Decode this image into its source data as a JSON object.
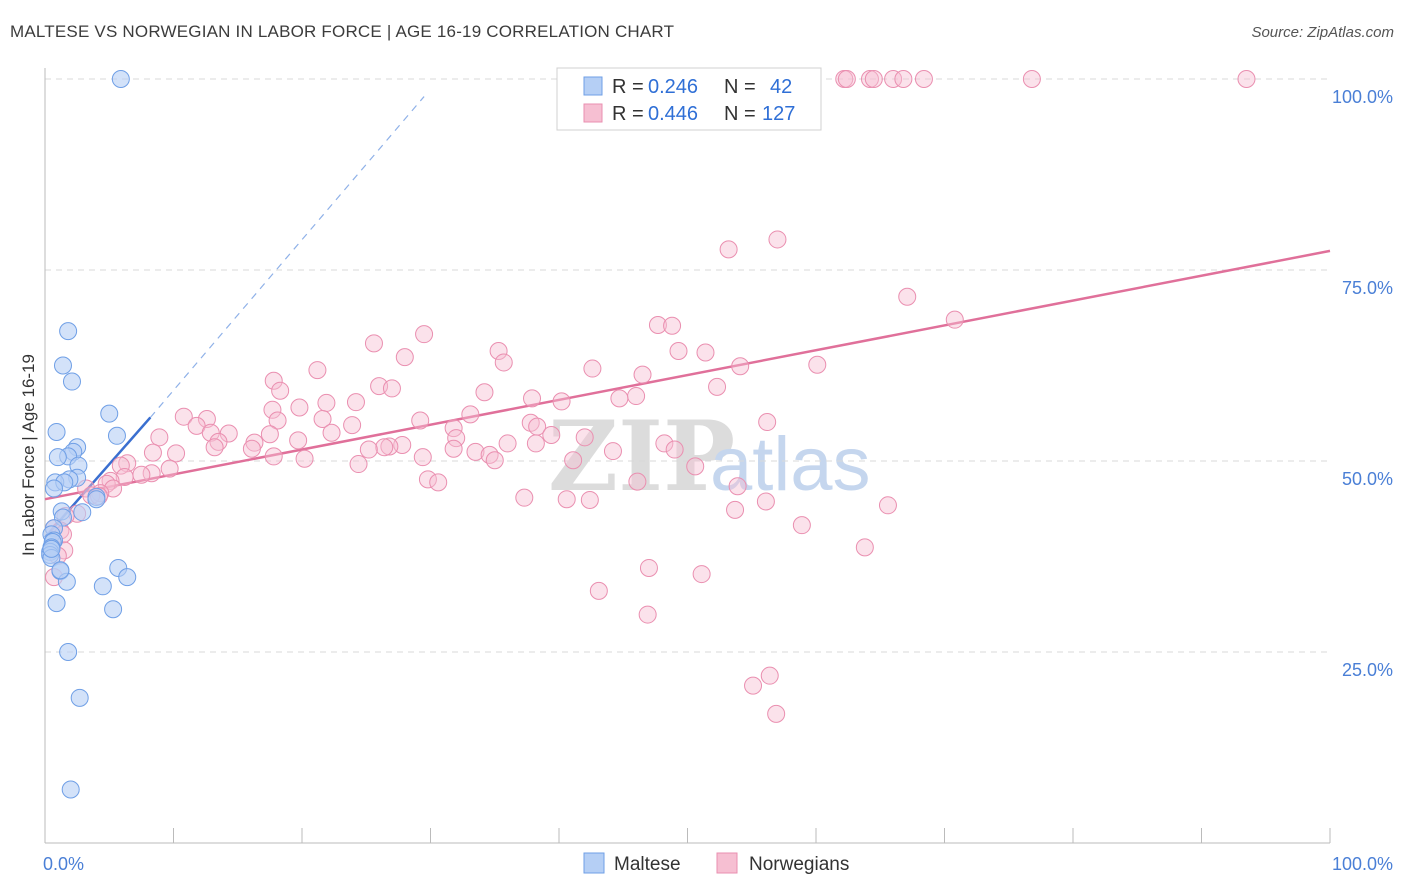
{
  "title": "MALTESE VS NORWEGIAN IN LABOR FORCE | AGE 16-19 CORRELATION CHART",
  "source": "Source: ZipAtlas.com",
  "watermark": {
    "zip": "ZIP",
    "atlas": "atlas"
  },
  "colors": {
    "maltese_fill": "#b5cff5",
    "maltese_stroke": "#6f9fe6",
    "maltese_line": "#3a6fd0",
    "norwegian_fill": "#f6bfd2",
    "norwegian_stroke": "#ea8fb0",
    "norwegian_line": "#e0709a",
    "grid": "#d9d9d9",
    "tick_text": "#4a7fd6"
  },
  "legend": {
    "maltese": {
      "r_label": "R = ",
      "r_value": "0.246",
      "n_label": "N = ",
      "n_value": "42"
    },
    "norwegian": {
      "r_label": "R = ",
      "r_value": "0.446",
      "n_label": "N = ",
      "n_value": "127"
    }
  },
  "bottom_legend": {
    "maltese": "Maltese",
    "norwegians": "Norwegians"
  },
  "chart_data": {
    "type": "scatter",
    "title": "MALTESE VS NORWEGIAN IN LABOR FORCE | AGE 16-19 CORRELATION CHART",
    "xlabel": "",
    "ylabel": "In Labor Force | Age 16-19",
    "xlim": [
      0,
      100
    ],
    "ylim": [
      0,
      100
    ],
    "x_tick_labels": [
      "0.0%",
      "100.0%"
    ],
    "y_ticks": [
      25,
      50,
      75,
      100
    ],
    "y_tick_labels": [
      "25.0%",
      "50.0%",
      "75.0%",
      "100.0%"
    ],
    "series": [
      {
        "name": "Maltese",
        "r": 0.246,
        "n": 42,
        "trend": {
          "x0": 0.0,
          "y0": 40.0,
          "x1": 8.2,
          "y1": 55.7,
          "dash_to_x": 29.5,
          "dash_to_y": 97.7
        },
        "points": [
          [
            5.9,
            100.0
          ],
          [
            1.8,
            67.0
          ],
          [
            2.1,
            60.4
          ],
          [
            1.4,
            62.5
          ],
          [
            5.0,
            56.2
          ],
          [
            5.6,
            53.3
          ],
          [
            0.9,
            53.8
          ],
          [
            2.5,
            51.8
          ],
          [
            2.2,
            51.2
          ],
          [
            1.8,
            50.6
          ],
          [
            1.0,
            50.5
          ],
          [
            2.6,
            49.4
          ],
          [
            2.5,
            47.8
          ],
          [
            1.9,
            47.6
          ],
          [
            0.8,
            47.2
          ],
          [
            1.5,
            47.2
          ],
          [
            0.7,
            46.4
          ],
          [
            4.0,
            45.3
          ],
          [
            4.0,
            45.0
          ],
          [
            2.9,
            43.3
          ],
          [
            1.3,
            43.4
          ],
          [
            1.4,
            42.6
          ],
          [
            0.7,
            41.2
          ],
          [
            0.5,
            40.4
          ],
          [
            0.7,
            39.6
          ],
          [
            0.6,
            39.4
          ],
          [
            0.5,
            38.7
          ],
          [
            0.4,
            38.1
          ],
          [
            0.4,
            37.7
          ],
          [
            0.5,
            37.3
          ],
          [
            1.2,
            35.6
          ],
          [
            5.7,
            36.0
          ],
          [
            6.4,
            34.8
          ],
          [
            1.7,
            34.2
          ],
          [
            4.5,
            33.6
          ],
          [
            0.9,
            31.4
          ],
          [
            5.3,
            30.6
          ],
          [
            1.8,
            25.0
          ],
          [
            2.7,
            19.0
          ],
          [
            2.0,
            7.0
          ],
          [
            1.2,
            35.7
          ],
          [
            0.5,
            38.5
          ]
        ]
      },
      {
        "name": "Norwegians",
        "r": 0.446,
        "n": 127,
        "trend": {
          "x0": 0.0,
          "y0": 45.0,
          "x1": 100.0,
          "y1": 77.5
        },
        "points": [
          [
            62.2,
            100.0
          ],
          [
            62.4,
            100.0
          ],
          [
            64.2,
            100.0
          ],
          [
            64.5,
            100.0
          ],
          [
            66.0,
            100.0
          ],
          [
            66.8,
            100.0
          ],
          [
            68.4,
            100.0
          ],
          [
            76.8,
            100.0
          ],
          [
            93.5,
            100.0
          ],
          [
            57.0,
            79.0
          ],
          [
            53.2,
            77.7
          ],
          [
            67.1,
            71.5
          ],
          [
            70.8,
            68.5
          ],
          [
            47.7,
            67.8
          ],
          [
            48.8,
            67.7
          ],
          [
            29.5,
            66.6
          ],
          [
            25.6,
            65.4
          ],
          [
            49.3,
            64.4
          ],
          [
            51.4,
            64.2
          ],
          [
            35.3,
            64.4
          ],
          [
            28.0,
            63.6
          ],
          [
            35.7,
            62.9
          ],
          [
            54.1,
            62.4
          ],
          [
            60.1,
            62.6
          ],
          [
            42.6,
            62.1
          ],
          [
            21.2,
            61.9
          ],
          [
            46.5,
            61.3
          ],
          [
            17.8,
            60.5
          ],
          [
            26.0,
            59.8
          ],
          [
            27.0,
            59.5
          ],
          [
            52.3,
            59.7
          ],
          [
            34.2,
            59.0
          ],
          [
            18.3,
            59.2
          ],
          [
            46.0,
            58.5
          ],
          [
            37.9,
            58.2
          ],
          [
            44.7,
            58.2
          ],
          [
            40.2,
            57.8
          ],
          [
            21.9,
            57.6
          ],
          [
            24.2,
            57.7
          ],
          [
            19.8,
            57.0
          ],
          [
            17.7,
            56.7
          ],
          [
            33.1,
            56.1
          ],
          [
            10.8,
            55.8
          ],
          [
            12.6,
            55.5
          ],
          [
            21.6,
            55.5
          ],
          [
            18.1,
            55.3
          ],
          [
            29.2,
            55.3
          ],
          [
            56.2,
            55.1
          ],
          [
            37.8,
            55.0
          ],
          [
            23.9,
            54.7
          ],
          [
            11.8,
            54.6
          ],
          [
            38.3,
            54.5
          ],
          [
            31.8,
            54.3
          ],
          [
            12.9,
            53.7
          ],
          [
            22.3,
            53.7
          ],
          [
            14.3,
            53.6
          ],
          [
            17.5,
            53.5
          ],
          [
            39.4,
            53.4
          ],
          [
            42.0,
            53.1
          ],
          [
            8.9,
            53.1
          ],
          [
            32.0,
            53.0
          ],
          [
            19.7,
            52.7
          ],
          [
            13.5,
            52.5
          ],
          [
            16.3,
            52.4
          ],
          [
            38.2,
            52.3
          ],
          [
            48.2,
            52.3
          ],
          [
            27.8,
            52.1
          ],
          [
            36.0,
            52.3
          ],
          [
            26.8,
            51.9
          ],
          [
            13.2,
            51.8
          ],
          [
            26.4,
            51.8
          ],
          [
            31.8,
            51.6
          ],
          [
            16.1,
            51.6
          ],
          [
            25.2,
            51.5
          ],
          [
            49.0,
            51.5
          ],
          [
            44.2,
            51.3
          ],
          [
            33.5,
            51.2
          ],
          [
            8.4,
            51.1
          ],
          [
            10.2,
            51.0
          ],
          [
            34.6,
            50.8
          ],
          [
            17.8,
            50.6
          ],
          [
            29.4,
            50.5
          ],
          [
            20.2,
            50.3
          ],
          [
            35.0,
            50.1
          ],
          [
            41.1,
            50.1
          ],
          [
            24.4,
            49.6
          ],
          [
            6.4,
            49.7
          ],
          [
            5.9,
            49.4
          ],
          [
            50.6,
            49.3
          ],
          [
            9.7,
            49.0
          ],
          [
            8.3,
            48.4
          ],
          [
            7.5,
            48.2
          ],
          [
            6.2,
            47.9
          ],
          [
            5.1,
            47.4
          ],
          [
            46.1,
            47.3
          ],
          [
            4.8,
            47.0
          ],
          [
            29.8,
            47.6
          ],
          [
            30.6,
            47.2
          ],
          [
            5.3,
            46.4
          ],
          [
            53.9,
            46.7
          ],
          [
            3.2,
            46.4
          ],
          [
            4.3,
            45.8
          ],
          [
            3.6,
            45.5
          ],
          [
            4.2,
            45.4
          ],
          [
            37.3,
            45.2
          ],
          [
            40.6,
            45.0
          ],
          [
            42.4,
            44.9
          ],
          [
            56.1,
            44.7
          ],
          [
            65.6,
            44.2
          ],
          [
            53.7,
            43.6
          ],
          [
            2.5,
            43.1
          ],
          [
            1.6,
            42.8
          ],
          [
            58.9,
            41.6
          ],
          [
            0.7,
            41.2
          ],
          [
            1.2,
            40.9
          ],
          [
            1.4,
            40.4
          ],
          [
            63.8,
            38.7
          ],
          [
            1.5,
            38.3
          ],
          [
            1.0,
            37.6
          ],
          [
            47.0,
            36.0
          ],
          [
            51.1,
            35.2
          ],
          [
            0.7,
            34.8
          ],
          [
            43.1,
            33.0
          ],
          [
            46.9,
            29.9
          ],
          [
            56.4,
            21.9
          ],
          [
            56.9,
            16.9
          ],
          [
            55.1,
            20.6
          ]
        ]
      }
    ]
  }
}
